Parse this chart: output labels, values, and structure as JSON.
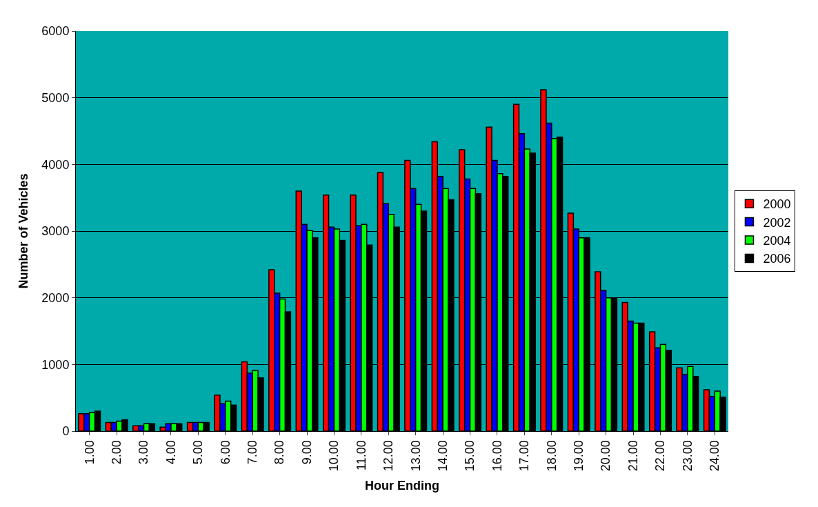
{
  "chart_data": {
    "type": "bar",
    "xlabel": "Hour Ending",
    "ylabel": "Number of Vehicles",
    "categories": [
      "1.00",
      "2.00",
      "3.00",
      "4.00",
      "5.00",
      "6.00",
      "7.00",
      "8.00",
      "9.00",
      "10.00",
      "11.00",
      "12.00",
      "13.00",
      "14.00",
      "15.00",
      "16.00",
      "17.00",
      "18.00",
      "19.00",
      "20.00",
      "21.00",
      "22.00",
      "23.00",
      "24.00"
    ],
    "series": [
      {
        "name": "2000",
        "color": "#ff0000",
        "values": [
          260,
          130,
          80,
          60,
          130,
          540,
          1040,
          2420,
          3600,
          3540,
          3540,
          3880,
          4060,
          4340,
          4220,
          4560,
          4900,
          5120,
          3270,
          2390,
          1930,
          1490,
          950,
          620
        ]
      },
      {
        "name": "2002",
        "color": "#0000ff",
        "values": [
          260,
          130,
          80,
          110,
          130,
          410,
          870,
          2070,
          3100,
          3060,
          3080,
          3410,
          3640,
          3820,
          3780,
          4060,
          4460,
          4620,
          3030,
          2110,
          1650,
          1250,
          850,
          520
        ]
      },
      {
        "name": "2004",
        "color": "#00ff00",
        "values": [
          280,
          150,
          110,
          110,
          130,
          450,
          910,
          1980,
          3010,
          3030,
          3100,
          3250,
          3400,
          3640,
          3640,
          3860,
          4230,
          4390,
          2900,
          2000,
          1620,
          1300,
          970,
          600
        ]
      },
      {
        "name": "2006",
        "color": "#000000",
        "values": [
          300,
          170,
          110,
          110,
          130,
          390,
          800,
          1790,
          2900,
          2860,
          2790,
          3060,
          3300,
          3470,
          3560,
          3820,
          4170,
          4410,
          2900,
          2000,
          1620,
          1210,
          820,
          510
        ]
      }
    ],
    "ylim": [
      0,
      6000
    ],
    "yticks": [
      0,
      1000,
      2000,
      3000,
      4000,
      5000,
      6000
    ],
    "grid": "y",
    "legend": "right"
  }
}
